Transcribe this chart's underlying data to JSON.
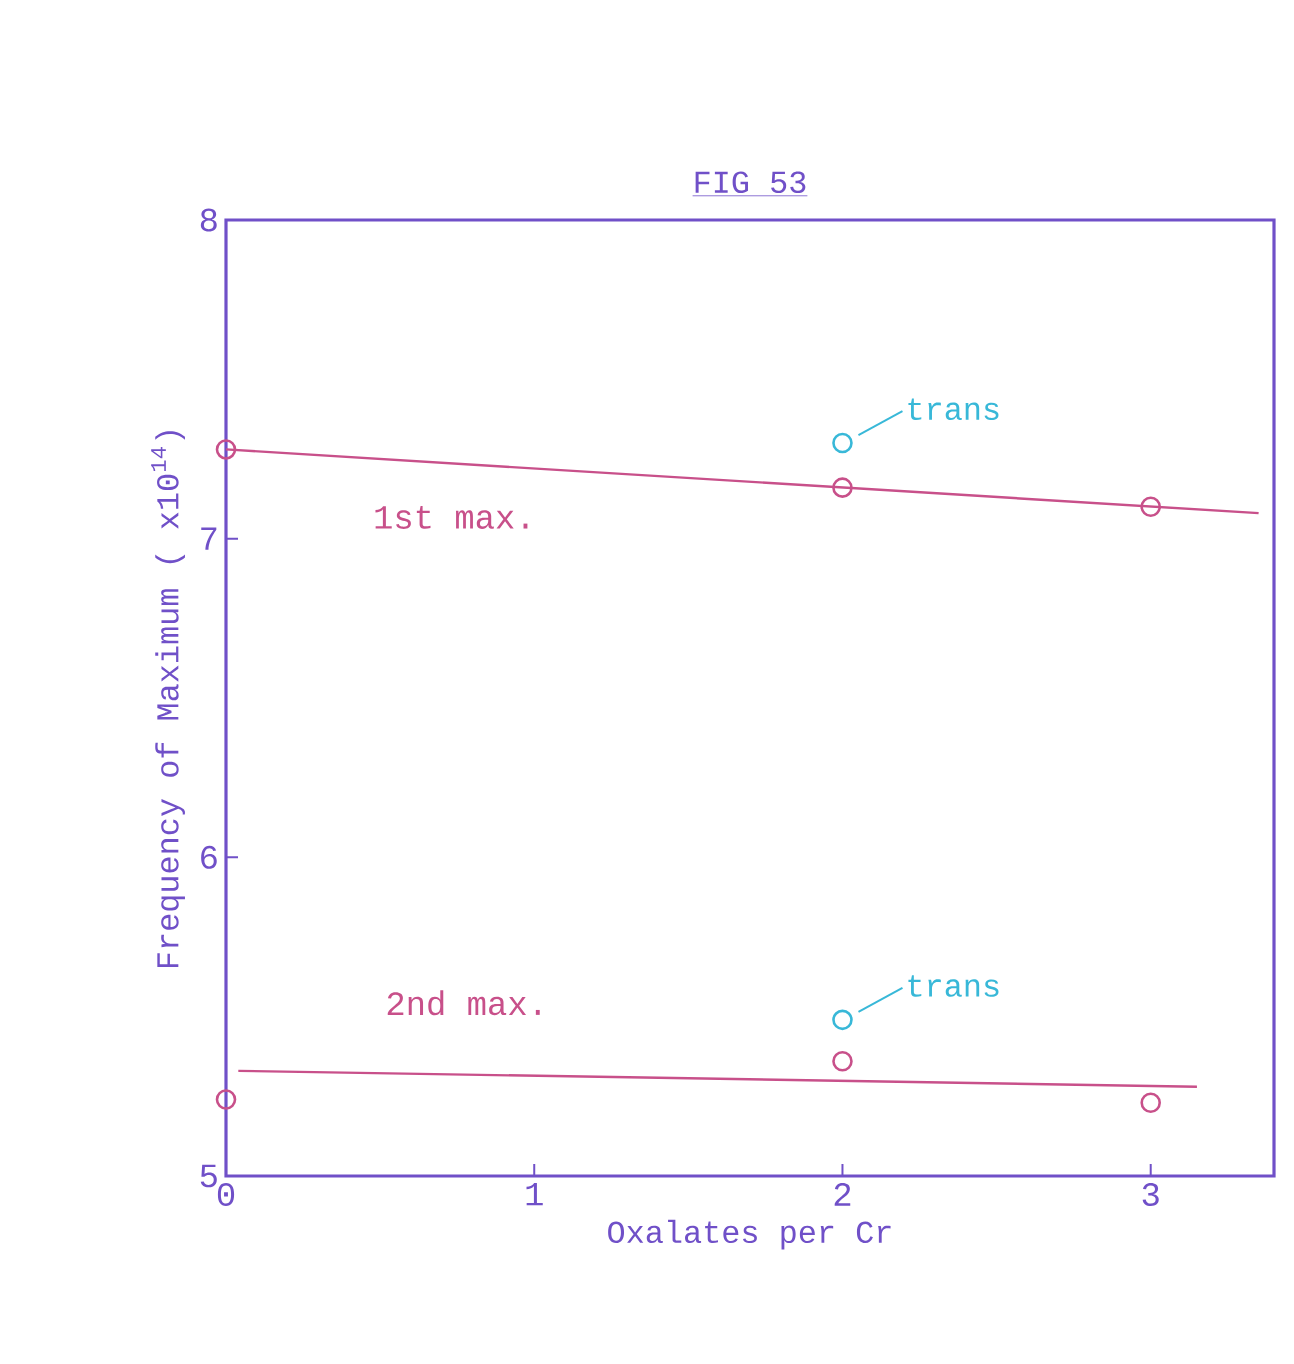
{
  "chart_data": {
    "type": "scatter",
    "title": "FIG 53",
    "xlabel": "Oxalates per Cr",
    "ylabel": "Frequency of Maximum ( x10$^{14}$)",
    "xlim": [
      0,
      3.4
    ],
    "ylim": [
      5,
      8
    ],
    "xticks": [
      0,
      1,
      2,
      3
    ],
    "yticks": [
      5,
      6,
      7,
      8
    ],
    "grid": false,
    "marker": "circle",
    "series": [
      {
        "type": "scatter",
        "color": "#c8508a",
        "x": [
          0,
          2,
          3
        ],
        "values": [
          7.28,
          7.16,
          7.1
        ]
      },
      {
        "name": "1st max.",
        "type": "line",
        "marker": "none",
        "color": "#c8508a",
        "line_style": "solid",
        "x": [
          0,
          3.35
        ],
        "values": [
          7.28,
          7.08
        ]
      },
      {
        "type": "scatter",
        "color": "#38b8d8",
        "x": [
          2
        ],
        "values": [
          7.3
        ]
      },
      {
        "type": "scatter",
        "color": "#c8508a",
        "x": [
          0,
          2,
          3
        ],
        "values": [
          5.24,
          5.36,
          5.23
        ]
      },
      {
        "name": "2nd max.",
        "type": "line",
        "marker": "none",
        "color": "#c8508a",
        "line_style": "solid",
        "x": [
          0.04,
          3.15
        ],
        "values": [
          5.33,
          5.28
        ]
      },
      {
        "type": "scatter",
        "color": "#38b8d8",
        "x": [
          2
        ],
        "values": [
          5.49
        ]
      }
    ],
    "annotations": [
      {
        "text": "trans",
        "x": 2,
        "y": 7.3
      },
      {
        "text": "trans",
        "x": 2,
        "y": 5.49
      }
    ]
  }
}
